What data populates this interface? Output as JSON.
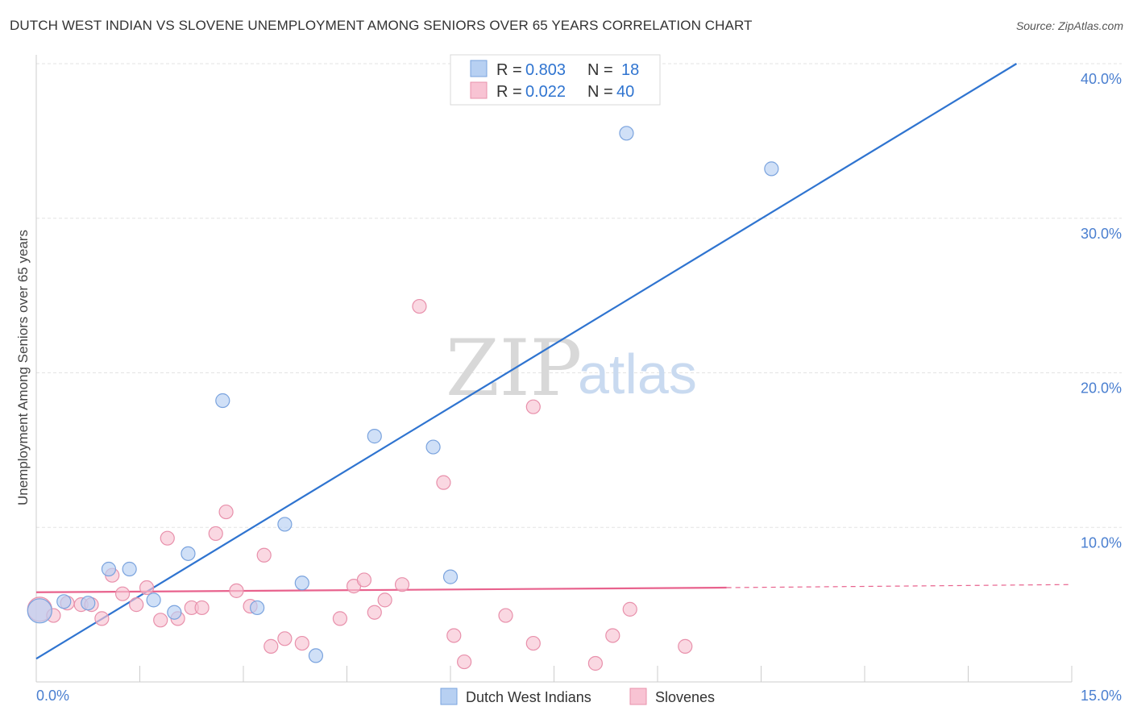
{
  "title": "DUTCH WEST INDIAN VS SLOVENE UNEMPLOYMENT AMONG SENIORS OVER 65 YEARS CORRELATION CHART",
  "source": "Source: ZipAtlas.com",
  "watermark": {
    "zip": "ZIP",
    "atlas": "atlas"
  },
  "colors": {
    "blue_fill": "#b7d0f2",
    "blue_stroke": "#7aa3de",
    "blue_line": "#2f74d0",
    "pink_fill": "#f8c3d3",
    "pink_stroke": "#e890ab",
    "pink_line": "#e8628d",
    "grid": "#e3e3e3",
    "tick_text": "#4a7fd0"
  },
  "legend": {
    "rows": [
      {
        "r_label": "R =",
        "r_value": "0.803",
        "n_label": "N =",
        "n_value": "18"
      },
      {
        "r_label": "R =",
        "r_value": "0.022",
        "n_label": "N =",
        "n_value": "40"
      }
    ]
  },
  "chart_data": {
    "type": "scatter",
    "title": "DUTCH WEST INDIAN VS SLOVENE UNEMPLOYMENT AMONG SENIORS OVER 65 YEARS CORRELATION CHART",
    "xlabel": "",
    "ylabel": "Unemployment Among Seniors over 65 years",
    "xlim": [
      0,
      15
    ],
    "ylim": [
      0,
      40
    ],
    "x_tick_labels": [
      "0.0%",
      "15.0%"
    ],
    "y_ticks": [
      10,
      20,
      30,
      40
    ],
    "y_tick_labels": [
      "10.0%",
      "20.0%",
      "30.0%",
      "40.0%"
    ],
    "legend_position": "top-center",
    "series": [
      {
        "name": "Dutch West Indians",
        "color": "blue",
        "R": 0.803,
        "N": 18,
        "points": [
          [
            0.05,
            4.6
          ],
          [
            0.4,
            5.2
          ],
          [
            0.75,
            5.1
          ],
          [
            1.05,
            7.3
          ],
          [
            1.35,
            7.3
          ],
          [
            1.7,
            5.3
          ],
          [
            2.0,
            4.5
          ],
          [
            2.2,
            8.3
          ],
          [
            2.7,
            18.2
          ],
          [
            3.2,
            4.8
          ],
          [
            3.6,
            10.2
          ],
          [
            3.85,
            6.4
          ],
          [
            4.05,
            1.7
          ],
          [
            4.9,
            15.9
          ],
          [
            5.75,
            15.2
          ],
          [
            6.0,
            6.8
          ],
          [
            8.55,
            35.5
          ],
          [
            10.65,
            33.2
          ]
        ],
        "trend": {
          "x": [
            0,
            14.2
          ],
          "y": [
            1.5,
            40.0
          ],
          "dashed_extension": false
        }
      },
      {
        "name": "Slovenes",
        "color": "pink",
        "R": 0.022,
        "N": 40,
        "points": [
          [
            0.05,
            4.7
          ],
          [
            0.25,
            4.3
          ],
          [
            0.45,
            5.1
          ],
          [
            0.65,
            5.0
          ],
          [
            0.8,
            5.0
          ],
          [
            0.95,
            4.1
          ],
          [
            1.1,
            6.9
          ],
          [
            1.25,
            5.7
          ],
          [
            1.45,
            5.0
          ],
          [
            1.6,
            6.1
          ],
          [
            1.8,
            4.0
          ],
          [
            1.9,
            9.3
          ],
          [
            2.05,
            4.1
          ],
          [
            2.25,
            4.8
          ],
          [
            2.4,
            4.8
          ],
          [
            2.6,
            9.6
          ],
          [
            2.75,
            11.0
          ],
          [
            2.9,
            5.9
          ],
          [
            3.1,
            4.9
          ],
          [
            3.3,
            8.2
          ],
          [
            3.4,
            2.3
          ],
          [
            3.6,
            2.8
          ],
          [
            3.85,
            2.5
          ],
          [
            4.4,
            4.1
          ],
          [
            4.6,
            6.2
          ],
          [
            4.75,
            6.6
          ],
          [
            4.9,
            4.5
          ],
          [
            5.05,
            5.3
          ],
          [
            5.3,
            6.3
          ],
          [
            5.55,
            24.3
          ],
          [
            5.9,
            12.9
          ],
          [
            6.05,
            3.0
          ],
          [
            6.2,
            1.3
          ],
          [
            6.8,
            4.3
          ],
          [
            7.2,
            17.8
          ],
          [
            7.2,
            2.5
          ],
          [
            8.1,
            1.2
          ],
          [
            8.35,
            3.0
          ],
          [
            8.6,
            4.7
          ],
          [
            9.4,
            2.3
          ]
        ],
        "trend": {
          "x": [
            0,
            10.0
          ],
          "y": [
            5.8,
            6.1
          ],
          "dashed_to": [
            15,
            6.3
          ]
        }
      }
    ]
  }
}
